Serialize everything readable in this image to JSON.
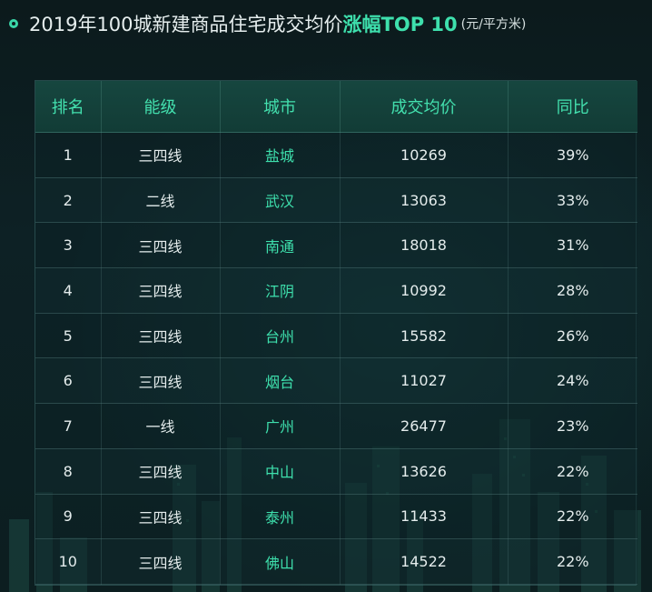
{
  "title": {
    "main": "2019年100城新建商品住宅成交均价",
    "highlight": "涨幅TOP 10",
    "unit": "(元/平方米)"
  },
  "colors": {
    "accent": "#3ee0ad",
    "header_bg": "#16463f",
    "text": "#e4ecec",
    "background": "#0b1719"
  },
  "chart_data": {
    "type": "table",
    "columns": [
      "排名",
      "能级",
      "城市",
      "成交均价",
      "同比"
    ],
    "rows": [
      {
        "rank": "1",
        "tier": "三四线",
        "city": "盐城",
        "price": "10269",
        "yoy": "39%"
      },
      {
        "rank": "2",
        "tier": "二线",
        "city": "武汉",
        "price": "13063",
        "yoy": "33%"
      },
      {
        "rank": "3",
        "tier": "三四线",
        "city": "南通",
        "price": "18018",
        "yoy": "31%"
      },
      {
        "rank": "4",
        "tier": "三四线",
        "city": "江阴",
        "price": "10992",
        "yoy": "28%"
      },
      {
        "rank": "5",
        "tier": "三四线",
        "city": "台州",
        "price": "15582",
        "yoy": "26%"
      },
      {
        "rank": "6",
        "tier": "三四线",
        "city": "烟台",
        "price": "11027",
        "yoy": "24%"
      },
      {
        "rank": "7",
        "tier": "一线",
        "city": "广州",
        "price": "26477",
        "yoy": "23%"
      },
      {
        "rank": "8",
        "tier": "三四线",
        "city": "中山",
        "price": "13626",
        "yoy": "22%"
      },
      {
        "rank": "9",
        "tier": "三四线",
        "city": "泰州",
        "price": "11433",
        "yoy": "22%"
      },
      {
        "rank": "10",
        "tier": "三四线",
        "city": "佛山",
        "price": "14522",
        "yoy": "22%"
      }
    ]
  }
}
